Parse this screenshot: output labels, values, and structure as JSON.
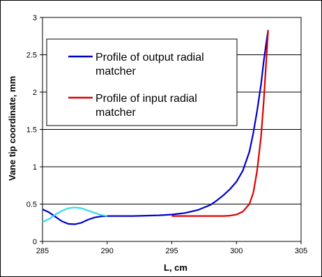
{
  "chart_data": {
    "type": "line",
    "xlabel": "L, cm",
    "ylabel": "Vane tip coordinate, mm",
    "xlim": [
      285,
      305
    ],
    "ylim": [
      0,
      3
    ],
    "xticks": [
      "285",
      "290",
      "295",
      "300",
      "305"
    ],
    "yticks": [
      "0",
      "0.5",
      "1",
      "1.5",
      "2",
      "2.5",
      "3"
    ],
    "grid": "horizontal",
    "legend_position": "top-left",
    "series": [
      {
        "name": "Profile of output radial matcher",
        "color": "#0000cc",
        "x": [
          285.0,
          285.5,
          286.0,
          286.5,
          287.0,
          287.5,
          288.0,
          288.5,
          289.0,
          289.5,
          290.0,
          291.0,
          292.0,
          293.0,
          294.0,
          295.0,
          296.0,
          297.0,
          298.0,
          298.5,
          299.0,
          299.5,
          300.0,
          300.5,
          301.0,
          301.3,
          301.6,
          301.9,
          302.1,
          302.3,
          302.45
        ],
        "y": [
          0.43,
          0.39,
          0.33,
          0.27,
          0.235,
          0.23,
          0.25,
          0.29,
          0.32,
          0.335,
          0.34,
          0.34,
          0.34,
          0.345,
          0.35,
          0.36,
          0.38,
          0.42,
          0.49,
          0.55,
          0.62,
          0.7,
          0.8,
          0.95,
          1.2,
          1.45,
          1.75,
          2.1,
          2.4,
          2.65,
          2.83
        ]
      },
      {
        "name": "Profile of input radial matcher",
        "color": "#dd0000",
        "x": [
          295.0,
          296.0,
          297.0,
          298.0,
          299.0,
          299.5,
          300.0,
          300.5,
          301.0,
          301.3,
          301.6,
          301.9,
          302.1,
          302.3,
          302.45
        ],
        "y": [
          0.34,
          0.34,
          0.34,
          0.34,
          0.34,
          0.345,
          0.36,
          0.4,
          0.5,
          0.65,
          0.95,
          1.4,
          1.85,
          2.4,
          2.83
        ]
      },
      {
        "color": "#33dddd",
        "x": [
          285.0,
          285.5,
          286.0,
          286.5,
          287.0,
          287.5,
          288.0,
          288.5,
          289.0,
          289.5,
          290.0
        ],
        "y": [
          0.26,
          0.3,
          0.36,
          0.41,
          0.445,
          0.455,
          0.445,
          0.415,
          0.385,
          0.355,
          0.34
        ]
      }
    ]
  }
}
